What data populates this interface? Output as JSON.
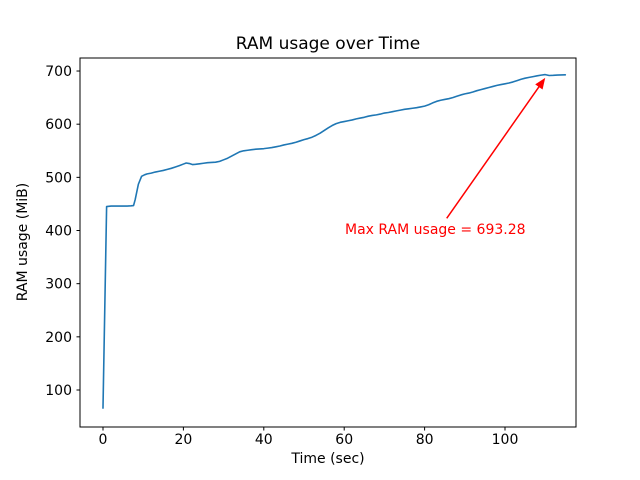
{
  "chart_data": {
    "type": "line",
    "title": "RAM usage over Time",
    "xlabel": "Time (sec)",
    "ylabel": "RAM usage (MiB)",
    "xlim": [
      -5.72,
      117.66
    ],
    "ylim": [
      30.4,
      724.5
    ],
    "x_ticks": [
      0,
      20,
      40,
      60,
      80,
      100
    ],
    "y_ticks": [
      100,
      200,
      300,
      400,
      500,
      600,
      700
    ],
    "grid": false,
    "legend": "none",
    "line_color": "#1f77b4",
    "axis_color": "#000000",
    "background_color": "#ffffff",
    "series": [
      {
        "name": "RAM usage",
        "points": [
          [
            0,
            66
          ],
          [
            0.9,
            445
          ],
          [
            2,
            446
          ],
          [
            3,
            446
          ],
          [
            4,
            446
          ],
          [
            5,
            446
          ],
          [
            6,
            446
          ],
          [
            7,
            446.5
          ],
          [
            7.6,
            447
          ],
          [
            8,
            458
          ],
          [
            8.8,
            487
          ],
          [
            9.6,
            502
          ],
          [
            10.4,
            505
          ],
          [
            11,
            506.5
          ],
          [
            12,
            508
          ],
          [
            13,
            510
          ],
          [
            14,
            511.5
          ],
          [
            15,
            513
          ],
          [
            16,
            515
          ],
          [
            17,
            517
          ],
          [
            18,
            519.5
          ],
          [
            19,
            522
          ],
          [
            20,
            525
          ],
          [
            20.7,
            527
          ],
          [
            21.5,
            526
          ],
          [
            22.3,
            524
          ],
          [
            23,
            524.5
          ],
          [
            24,
            525.5
          ],
          [
            25,
            526.5
          ],
          [
            26,
            527.5
          ],
          [
            27,
            528
          ],
          [
            28,
            528.5
          ],
          [
            29,
            530
          ],
          [
            30,
            533
          ],
          [
            31,
            536
          ],
          [
            32,
            540
          ],
          [
            33,
            544
          ],
          [
            34,
            548
          ],
          [
            35,
            550
          ],
          [
            36,
            551
          ],
          [
            37,
            552
          ],
          [
            38,
            553
          ],
          [
            39,
            553.5
          ],
          [
            40,
            554
          ],
          [
            41,
            555
          ],
          [
            42,
            556
          ],
          [
            43,
            557.5
          ],
          [
            44,
            559
          ],
          [
            45,
            561
          ],
          [
            46,
            562.5
          ],
          [
            47,
            564
          ],
          [
            48,
            566
          ],
          [
            49,
            568.5
          ],
          [
            50,
            571
          ],
          [
            51,
            573
          ],
          [
            52,
            575.5
          ],
          [
            53,
            579
          ],
          [
            54,
            583
          ],
          [
            55,
            588
          ],
          [
            56,
            593
          ],
          [
            57,
            597.5
          ],
          [
            58,
            601
          ],
          [
            59,
            603.5
          ],
          [
            60,
            605
          ],
          [
            61,
            606.5
          ],
          [
            62,
            608
          ],
          [
            63,
            610
          ],
          [
            64,
            611.5
          ],
          [
            65,
            613
          ],
          [
            66,
            615
          ],
          [
            67,
            616.5
          ],
          [
            68,
            617.5
          ],
          [
            69,
            619
          ],
          [
            70,
            621
          ],
          [
            71,
            622
          ],
          [
            72,
            623.5
          ],
          [
            73,
            625
          ],
          [
            74,
            626.5
          ],
          [
            75,
            628
          ],
          [
            76,
            629
          ],
          [
            77,
            630
          ],
          [
            78,
            631
          ],
          [
            79,
            632.5
          ],
          [
            80,
            634
          ],
          [
            81,
            636.5
          ],
          [
            82,
            640
          ],
          [
            83,
            643
          ],
          [
            84,
            645
          ],
          [
            85,
            646.5
          ],
          [
            86,
            648
          ],
          [
            87,
            650
          ],
          [
            88,
            652.5
          ],
          [
            89,
            655
          ],
          [
            90,
            657
          ],
          [
            91,
            658.5
          ],
          [
            92,
            660.5
          ],
          [
            93,
            663
          ],
          [
            94,
            665
          ],
          [
            95,
            667
          ],
          [
            96,
            669
          ],
          [
            97,
            671
          ],
          [
            98,
            673
          ],
          [
            99,
            674.5
          ],
          [
            100,
            676
          ],
          [
            101,
            677.5
          ],
          [
            102,
            679.5
          ],
          [
            103,
            682
          ],
          [
            104,
            684.5
          ],
          [
            105,
            686.5
          ],
          [
            106,
            688
          ],
          [
            107,
            689.5
          ],
          [
            108,
            691
          ],
          [
            109,
            692.3
          ],
          [
            110,
            693.28
          ],
          [
            111,
            691.6
          ],
          [
            112,
            691.9
          ],
          [
            113,
            692.4
          ],
          [
            114,
            692.7
          ],
          [
            115,
            692.9
          ]
        ]
      }
    ],
    "max_value": 693.28,
    "annotation": {
      "text": "Max RAM usage = 693.28",
      "color": "#ff0000",
      "text_x": 60.2,
      "text_y": 393,
      "arrow_start_x": 85.5,
      "arrow_start_y": 423,
      "arrow_tip_x": 110,
      "arrow_tip_y": 687
    }
  }
}
